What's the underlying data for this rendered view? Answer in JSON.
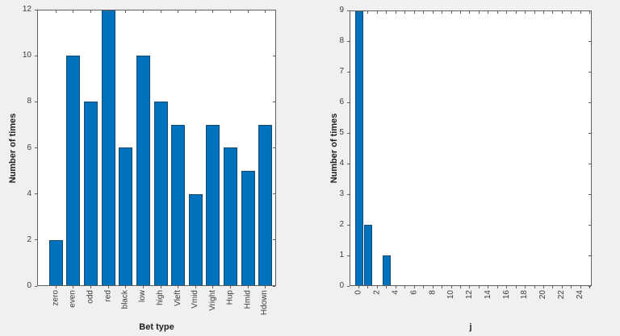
{
  "figure": {
    "background_color": "#f0f0f0",
    "plot_background_color": "#ffffff",
    "axis_color": "#5e5e5e",
    "tick_label_color": "#3c3c3c",
    "axis_label_color": "#1f1f1f",
    "bar_fill_color": "#0072bd",
    "bar_edge_color": "#174a6e"
  },
  "chart_data": [
    {
      "type": "bar",
      "categories": [
        "zero",
        "even",
        "odd",
        "red",
        "black",
        "low",
        "high",
        "Vleft",
        "Vmid",
        "Vright",
        "Hup",
        "Hmid",
        "Hdown"
      ],
      "values": [
        2,
        10,
        8,
        12,
        6,
        10,
        8,
        7,
        4,
        7,
        6,
        5,
        7
      ],
      "xlabel": "Bet type",
      "ylabel": "Number of times",
      "ylim": [
        0,
        12
      ],
      "yticks": [
        0,
        2,
        4,
        6,
        8,
        10,
        12
      ],
      "xlim": [
        -0.08,
        13.62
      ],
      "bar_width": 0.8,
      "x_tick_rotation": 90,
      "grid": false,
      "legend": null
    },
    {
      "type": "bar",
      "x": [
        0,
        1,
        3
      ],
      "values": [
        9,
        2,
        1
      ],
      "xlabel": "j",
      "ylabel": "Number of times",
      "ylim": [
        0,
        9
      ],
      "yticks": [
        0,
        1,
        2,
        3,
        4,
        5,
        6,
        7,
        8,
        9
      ],
      "xlim": [
        -1,
        25.2
      ],
      "xticks": [
        0,
        1,
        2,
        3,
        4,
        5,
        6,
        7,
        8,
        9,
        10,
        11,
        12,
        13,
        14,
        15,
        16,
        17,
        18,
        19,
        20,
        21,
        22,
        23,
        24,
        25
      ],
      "xtick_labels": [
        "0",
        "",
        "2",
        "",
        "4",
        "",
        "6",
        "",
        "8",
        "",
        "10",
        "",
        "12",
        "",
        "14",
        "",
        "16",
        "",
        "18",
        "",
        "20",
        "",
        "22",
        "",
        "24",
        ""
      ],
      "bar_width": 0.86,
      "x_tick_rotation": 90,
      "grid": false,
      "legend": null
    }
  ]
}
